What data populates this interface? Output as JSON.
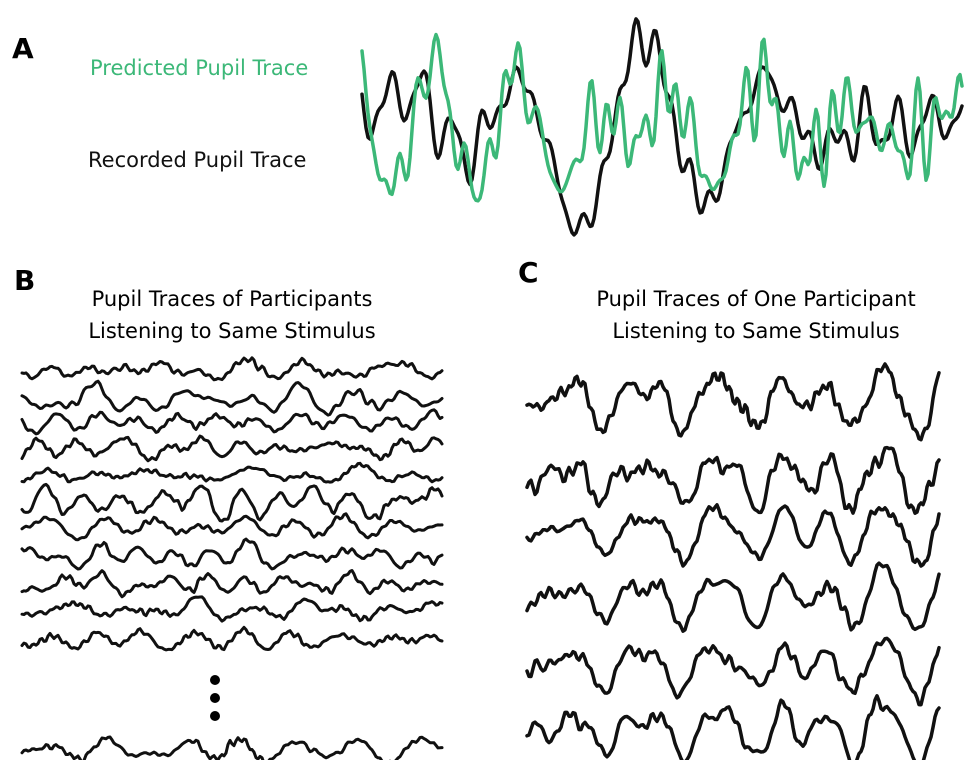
{
  "panels": [
    {
      "label": "A",
      "legend": [
        "Predicted Pupil Trace",
        "Recorded Pupil Trace"
      ]
    },
    {
      "label": "B",
      "title": [
        "Pupil Traces of Participants",
        "Listening to Same Stimulus"
      ]
    },
    {
      "label": "C",
      "title": [
        "Pupil Traces of One Participant",
        "Listening to Same Stimulus"
      ]
    }
  ]
}
